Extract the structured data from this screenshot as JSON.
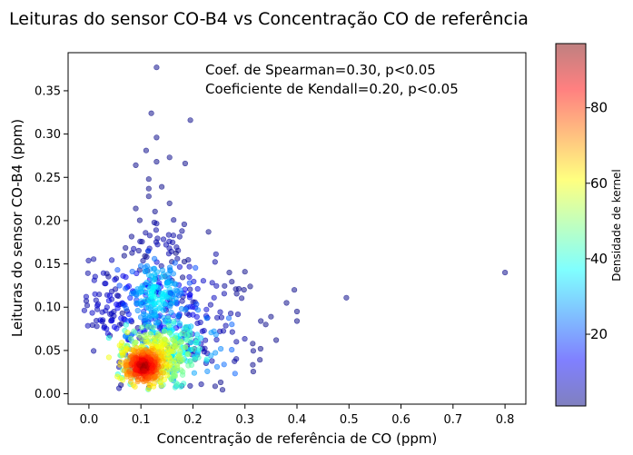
{
  "chart_data": {
    "type": "scatter",
    "title": "Leituras do sensor CO-B4 vs Concentração CO de referência",
    "xlabel": "Concentração de referência de CO (ppm)",
    "ylabel": "Leituras do sensor CO-B4 (ppm)",
    "xlim": [
      -0.04,
      0.84
    ],
    "ylim": [
      -0.012,
      0.394
    ],
    "xticks": [
      0.0,
      0.1,
      0.2,
      0.3,
      0.4,
      0.5,
      0.6,
      0.7,
      0.8
    ],
    "xtick_labels": [
      "0.0",
      "0.1",
      "0.2",
      "0.3",
      "0.4",
      "0.5",
      "0.6",
      "0.7",
      "0.8"
    ],
    "yticks": [
      0.0,
      0.05,
      0.1,
      0.15,
      0.2,
      0.25,
      0.3,
      0.35
    ],
    "ytick_labels": [
      "0.00",
      "0.05",
      "0.10",
      "0.15",
      "0.20",
      "0.25",
      "0.30",
      "0.35"
    ],
    "annotations": [
      "Coef. de Spearman=0.30, p<0.05",
      "Coeficiente de Kendall=0.20, p<0.05"
    ],
    "colorbar": {
      "label": "Densidade de kernel",
      "colormap": "jet",
      "range": [
        1,
        97
      ],
      "ticks": [
        20,
        40,
        60,
        80
      ],
      "tick_labels": [
        "20",
        "40",
        "60",
        "80"
      ]
    },
    "outlier_points": [
      {
        "x": 0.13,
        "y": 0.377
      },
      {
        "x": 0.12,
        "y": 0.324
      },
      {
        "x": 0.195,
        "y": 0.316
      },
      {
        "x": 0.13,
        "y": 0.296
      },
      {
        "x": 0.11,
        "y": 0.281
      },
      {
        "x": 0.155,
        "y": 0.273
      },
      {
        "x": 0.13,
        "y": 0.268
      },
      {
        "x": 0.09,
        "y": 0.264
      },
      {
        "x": 0.185,
        "y": 0.266
      },
      {
        "x": 0.115,
        "y": 0.248
      },
      {
        "x": 0.14,
        "y": 0.239
      },
      {
        "x": 0.115,
        "y": 0.237
      },
      {
        "x": 0.115,
        "y": 0.228
      },
      {
        "x": 0.155,
        "y": 0.22
      },
      {
        "x": 0.09,
        "y": 0.214
      },
      {
        "x": 0.23,
        "y": 0.187
      },
      {
        "x": 0.8,
        "y": 0.14
      },
      {
        "x": 0.495,
        "y": 0.111
      },
      {
        "x": 0.395,
        "y": 0.12
      },
      {
        "x": 0.4,
        "y": 0.095
      },
      {
        "x": 0.38,
        "y": 0.105
      },
      {
        "x": 0.4,
        "y": 0.084
      },
      {
        "x": 0.35,
        "y": 0.089
      },
      {
        "x": 0.3,
        "y": 0.141
      },
      {
        "x": 0.34,
        "y": 0.08
      },
      {
        "x": 0.31,
        "y": 0.124
      },
      {
        "x": 0.36,
        "y": 0.062
      },
      {
        "x": 0.27,
        "y": 0.14
      },
      {
        "x": 0.33,
        "y": 0.052
      },
      {
        "x": 0.315,
        "y": 0.058
      }
    ],
    "clusters": [
      {
        "cx": 0.105,
        "cy": 0.032,
        "sx": 0.02,
        "sy": 0.011,
        "n": 300,
        "density": [
          96,
          60
        ]
      },
      {
        "cx": 0.13,
        "cy": 0.045,
        "sx": 0.035,
        "sy": 0.018,
        "n": 220,
        "density": [
          68,
          40
        ]
      },
      {
        "cx": 0.16,
        "cy": 0.055,
        "sx": 0.045,
        "sy": 0.022,
        "n": 130,
        "density": [
          42,
          22
        ]
      },
      {
        "cx": 0.13,
        "cy": 0.115,
        "sx": 0.025,
        "sy": 0.02,
        "n": 140,
        "density": [
          40,
          20
        ]
      },
      {
        "cx": 0.12,
        "cy": 0.1,
        "sx": 0.06,
        "sy": 0.03,
        "n": 170,
        "density": [
          20,
          4
        ]
      },
      {
        "cx": 0.2,
        "cy": 0.07,
        "sx": 0.06,
        "sy": 0.035,
        "n": 90,
        "density": [
          8,
          1
        ]
      },
      {
        "cx": 0.035,
        "cy": 0.1,
        "sx": 0.025,
        "sy": 0.018,
        "n": 40,
        "density": [
          8,
          2
        ]
      },
      {
        "cx": 0.14,
        "cy": 0.17,
        "sx": 0.035,
        "sy": 0.02,
        "n": 40,
        "density": [
          6,
          1
        ]
      }
    ]
  }
}
